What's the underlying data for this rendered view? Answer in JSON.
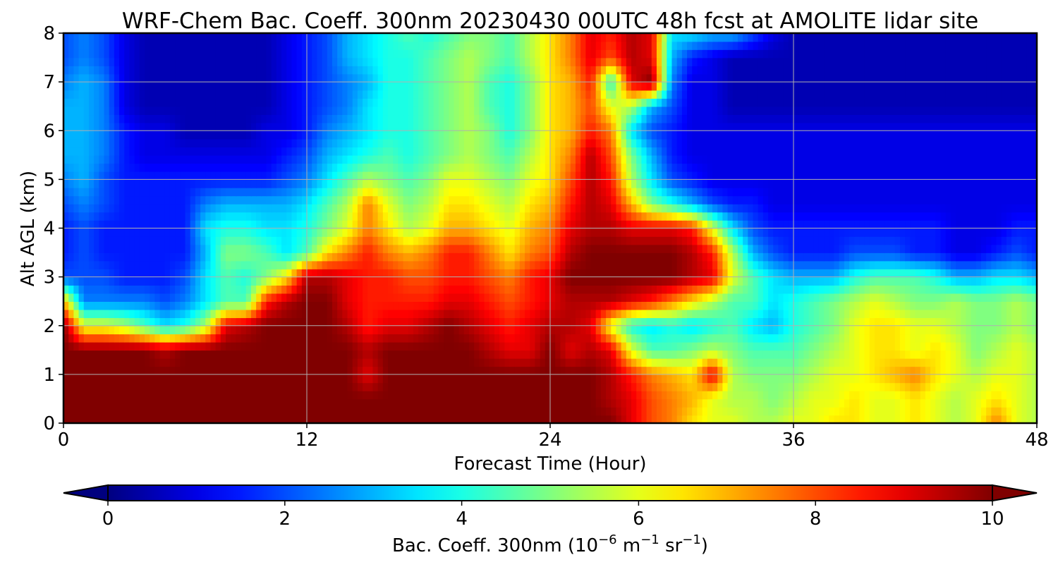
{
  "chart_data": {
    "type": "heatmap",
    "subtype": "filled-contour",
    "title": "WRF-Chem Bac. Coeff. 300nm  20230430 00UTC 48h fcst at AMOLITE lidar site",
    "xlabel": "Forecast Time (Hour)",
    "ylabel": "Alt AGL (km)",
    "xlim": [
      0,
      48
    ],
    "ylim": [
      0,
      8
    ],
    "xticks": [
      0,
      12,
      24,
      36,
      48
    ],
    "yticks": [
      0,
      1,
      2,
      3,
      4,
      5,
      6,
      7,
      8
    ],
    "grid": true,
    "colormap": "jet",
    "colorbar": {
      "orientation": "horizontal",
      "label_main": "Bac. Coeff. 300nm  (10",
      "label_exp1": "−6",
      "label_mid": " m",
      "label_exp2": "−1",
      "label_mid2": " sr",
      "label_exp3": "−1",
      "label_end": ")",
      "range": [
        0,
        10
      ],
      "ticks": [
        0,
        2,
        4,
        6,
        8,
        10
      ],
      "extend": "both",
      "colors": [
        "#00007f",
        "#0000ff",
        "#00a4ff",
        "#40ffb7",
        "#b7ff40",
        "#ffb900",
        "#ff3000",
        "#7f0000"
      ]
    },
    "x": [
      0,
      1,
      2,
      3,
      4,
      5,
      6,
      7,
      8,
      9,
      10,
      11,
      12,
      13,
      14,
      15,
      16,
      17,
      18,
      19,
      20,
      21,
      22,
      23,
      24,
      25,
      26,
      27,
      28,
      29,
      30,
      31,
      32,
      33,
      34,
      35,
      36,
      37,
      38,
      39,
      40,
      41,
      42,
      43,
      44,
      45,
      46,
      47,
      48
    ],
    "z": [
      0,
      0.5,
      1,
      1.5,
      2,
      2.5,
      3,
      3.5,
      4,
      4.5,
      5,
      5.5,
      6,
      6.5,
      7,
      7.5,
      8
    ],
    "values": [
      [
        10,
        10,
        10,
        10,
        10,
        10,
        10,
        10,
        10,
        10,
        10,
        10,
        10,
        10,
        10,
        10,
        10,
        10,
        10,
        10,
        10,
        10,
        10,
        10,
        10,
        10,
        10,
        10,
        9,
        8,
        7.5,
        6.5,
        6,
        6,
        5.5,
        5.5,
        6,
        6,
        6.5,
        6.5,
        6,
        6,
        6.5,
        6,
        5.5,
        6,
        7.5,
        6,
        5.5
      ],
      [
        10,
        10,
        10,
        10,
        10,
        10,
        10,
        10,
        10,
        10,
        10,
        10,
        10,
        10,
        10,
        10,
        10,
        10,
        10,
        10,
        10,
        10,
        10,
        10,
        10,
        10,
        10,
        9.5,
        9,
        8,
        7.5,
        7,
        6,
        5.5,
        5.5,
        5,
        5.5,
        6,
        6,
        6.5,
        6,
        6,
        6.5,
        6,
        5.5,
        6,
        6.5,
        6,
        5.5
      ],
      [
        10,
        10,
        10,
        10,
        10,
        10,
        10,
        10,
        10,
        10,
        10,
        10,
        10,
        10,
        10,
        9,
        10,
        10,
        10,
        10,
        10,
        10,
        10,
        10,
        10,
        10,
        10,
        9.5,
        8.5,
        7.5,
        7,
        6.5,
        9,
        5.5,
        5,
        5,
        5,
        5.5,
        6,
        6,
        6.5,
        7,
        7.5,
        6.5,
        6,
        5.5,
        6,
        6,
        5.5
      ],
      [
        10,
        10,
        10,
        10,
        10,
        9.5,
        10,
        10,
        10,
        10,
        10,
        10,
        10,
        10,
        10,
        9.5,
        10,
        10,
        10,
        10,
        10,
        9.5,
        9,
        9,
        10,
        9,
        9.5,
        9,
        6,
        4.5,
        4.5,
        5,
        5.5,
        5,
        4.5,
        4.5,
        4.5,
        5,
        5.5,
        6,
        6.5,
        6.5,
        6,
        6.5,
        6,
        5,
        5.5,
        6,
        5.5
      ],
      [
        10,
        6,
        6,
        5.5,
        4.5,
        3.5,
        4,
        5.5,
        9,
        9.5,
        10,
        10,
        10,
        10,
        9.5,
        8.5,
        9,
        9,
        9.5,
        10,
        9.5,
        9,
        8.5,
        9,
        9.5,
        9.5,
        9,
        6,
        4,
        3.5,
        4,
        3.5,
        4,
        4.5,
        3.5,
        3,
        4,
        4.5,
        5,
        6,
        6.5,
        6.5,
        6,
        6,
        5.5,
        5,
        5,
        5.5,
        5
      ],
      [
        7,
        2.5,
        2.5,
        2.5,
        2.5,
        2,
        2.5,
        3.5,
        4.5,
        4.5,
        8.5,
        9.5,
        10,
        10,
        9,
        8.5,
        8.5,
        8.5,
        8.5,
        9,
        9,
        8.5,
        8,
        8.5,
        9,
        9.5,
        9.5,
        9.5,
        9,
        8.5,
        7.5,
        6.5,
        5.5,
        4.5,
        4.5,
        3.5,
        4,
        4.5,
        5,
        5.5,
        6,
        5.5,
        5,
        5,
        5.5,
        5,
        5,
        5.5,
        5
      ],
      [
        2,
        2,
        2,
        1.5,
        1.5,
        1.5,
        2,
        3.5,
        4.5,
        4,
        5,
        6.5,
        9.5,
        9.5,
        9,
        8.5,
        8.5,
        8,
        8,
        8.5,
        8.5,
        8,
        7.5,
        8.5,
        9,
        10,
        10,
        10,
        10,
        10,
        10,
        9.5,
        9,
        6,
        4.5,
        3.5,
        3,
        3,
        3,
        4,
        4.5,
        4.5,
        4.5,
        4,
        3,
        3,
        3.5,
        3.5,
        3
      ],
      [
        1.5,
        2,
        1.5,
        1.5,
        1.5,
        1.5,
        1.5,
        3,
        5,
        5,
        4.5,
        3.5,
        4.5,
        6.5,
        7.5,
        8.5,
        7.5,
        7,
        7.5,
        8.5,
        8.5,
        7.5,
        6.5,
        7.5,
        8,
        9.5,
        10,
        10,
        10,
        10,
        10,
        9.5,
        8.5,
        5.5,
        3,
        2,
        1.5,
        1.5,
        1.5,
        2,
        2,
        2,
        1.5,
        1.5,
        1,
        1,
        1.5,
        2,
        1.5
      ],
      [
        1.5,
        2,
        1.5,
        1.5,
        1.5,
        1.5,
        1.5,
        3.5,
        4,
        4,
        3.5,
        3.5,
        4,
        5,
        6,
        7.5,
        6.5,
        5.5,
        6,
        7,
        7,
        6.5,
        6,
        7,
        7.5,
        9,
        9.5,
        9.5,
        9,
        9,
        9,
        8.5,
        6,
        3.5,
        2,
        1.5,
        1.5,
        1.5,
        1.5,
        1.5,
        1.5,
        1.5,
        1.5,
        1.5,
        1,
        1,
        1,
        1.5,
        1.5
      ],
      [
        2,
        2.5,
        2,
        1.5,
        1.5,
        1.5,
        1.5,
        2.5,
        3,
        3,
        3,
        3,
        3.5,
        4.5,
        5.5,
        7.5,
        6,
        5,
        5.5,
        6.5,
        6.5,
        6,
        5.5,
        6.5,
        7,
        8.5,
        9.5,
        9,
        7,
        5,
        4,
        3,
        2,
        1.5,
        1.5,
        1,
        1,
        1,
        1,
        1,
        1,
        1,
        1,
        1,
        1,
        1,
        1,
        1,
        1
      ],
      [
        2.5,
        3,
        2,
        1.5,
        1.5,
        1.5,
        1.5,
        1.5,
        1.5,
        1.5,
        1.5,
        2,
        2.5,
        3.5,
        4.5,
        5.5,
        5,
        4.5,
        5,
        6,
        6,
        5.5,
        5,
        6,
        6.5,
        8,
        9.5,
        8.5,
        5.5,
        3.5,
        2,
        1.5,
        1,
        1,
        1,
        1,
        1,
        1,
        1,
        1,
        1,
        1,
        1,
        1,
        1,
        1,
        1,
        1,
        1
      ],
      [
        3,
        3,
        2.5,
        1.5,
        1,
        1,
        1,
        1,
        1,
        1,
        1,
        1.5,
        2,
        3,
        3.5,
        4,
        4.5,
        4,
        4.5,
        5,
        5.5,
        5,
        4.5,
        5.5,
        6.5,
        7.5,
        9.5,
        8,
        5,
        3,
        1.5,
        1,
        1,
        1,
        1,
        1,
        1,
        1,
        1,
        1,
        1,
        1,
        1,
        1,
        1,
        1,
        1,
        1,
        1
      ],
      [
        3,
        3,
        2.5,
        1.5,
        1,
        1,
        0.5,
        0.5,
        0.5,
        0.5,
        1,
        1,
        1.5,
        2.5,
        3,
        3.5,
        4,
        4,
        4.5,
        5,
        5.5,
        5,
        4,
        5,
        6.5,
        7,
        8.5,
        7.5,
        3.5,
        2,
        1.5,
        1,
        1,
        1,
        1,
        1,
        1,
        1,
        1,
        1,
        1,
        1,
        1,
        1,
        1,
        1,
        1,
        1,
        1
      ],
      [
        3,
        3,
        2.5,
        1,
        0.5,
        0.5,
        0.5,
        0.5,
        0.5,
        0.5,
        0.5,
        1,
        1.5,
        2,
        2.5,
        3.5,
        4,
        4,
        4.5,
        5,
        5.5,
        4.5,
        4,
        5,
        6.5,
        7,
        8,
        6,
        5.5,
        3,
        2,
        1,
        1,
        0.5,
        0.5,
        0.5,
        0.5,
        0.5,
        0.5,
        0.5,
        0.5,
        0.5,
        0.5,
        0.5,
        0.5,
        0.5,
        0.5,
        0.5,
        0.5
      ],
      [
        2.5,
        3,
        2.5,
        1,
        0.5,
        0.5,
        0.5,
        0.5,
        0.5,
        0.5,
        0.5,
        1,
        1.5,
        2,
        2.5,
        3,
        4,
        4,
        4.5,
        5,
        5.5,
        4.5,
        4,
        5,
        6.5,
        7,
        8.5,
        4,
        9,
        10,
        2.5,
        1,
        1,
        0.5,
        0.5,
        0.5,
        0.5,
        0.5,
        0.5,
        0.5,
        0.5,
        0.5,
        0.5,
        0.5,
        0.5,
        0.5,
        0.5,
        0.5,
        0.5
      ],
      [
        2,
        2.5,
        2,
        1,
        0.5,
        0.5,
        0.5,
        0.5,
        0.5,
        0.5,
        0.5,
        1,
        1.5,
        2,
        3,
        3.5,
        4,
        4,
        4.5,
        5,
        5.5,
        5,
        4.5,
        5.5,
        6.5,
        7.5,
        9,
        8,
        9.5,
        9,
        3,
        1.5,
        1,
        0.5,
        0.5,
        0.5,
        0.5,
        0.5,
        0.5,
        0.5,
        0.5,
        0.5,
        0.5,
        0.5,
        0.5,
        0.5,
        0.5,
        0.5,
        0.5
      ],
      [
        2,
        2.5,
        2,
        1,
        0.5,
        0.5,
        0.5,
        0.5,
        0.5,
        0.5,
        0.5,
        1,
        1.5,
        2,
        3,
        3.5,
        4,
        4.5,
        4,
        4.5,
        5,
        5,
        4.5,
        5.5,
        6.5,
        7.5,
        9,
        8.5,
        9.5,
        9,
        3.5,
        3.5,
        3,
        3,
        2,
        1,
        0.5,
        0.5,
        0.5,
        0.5,
        0.5,
        0.5,
        0.5,
        0.5,
        0.5,
        0.5,
        0.5,
        0.5,
        0.5
      ]
    ]
  }
}
